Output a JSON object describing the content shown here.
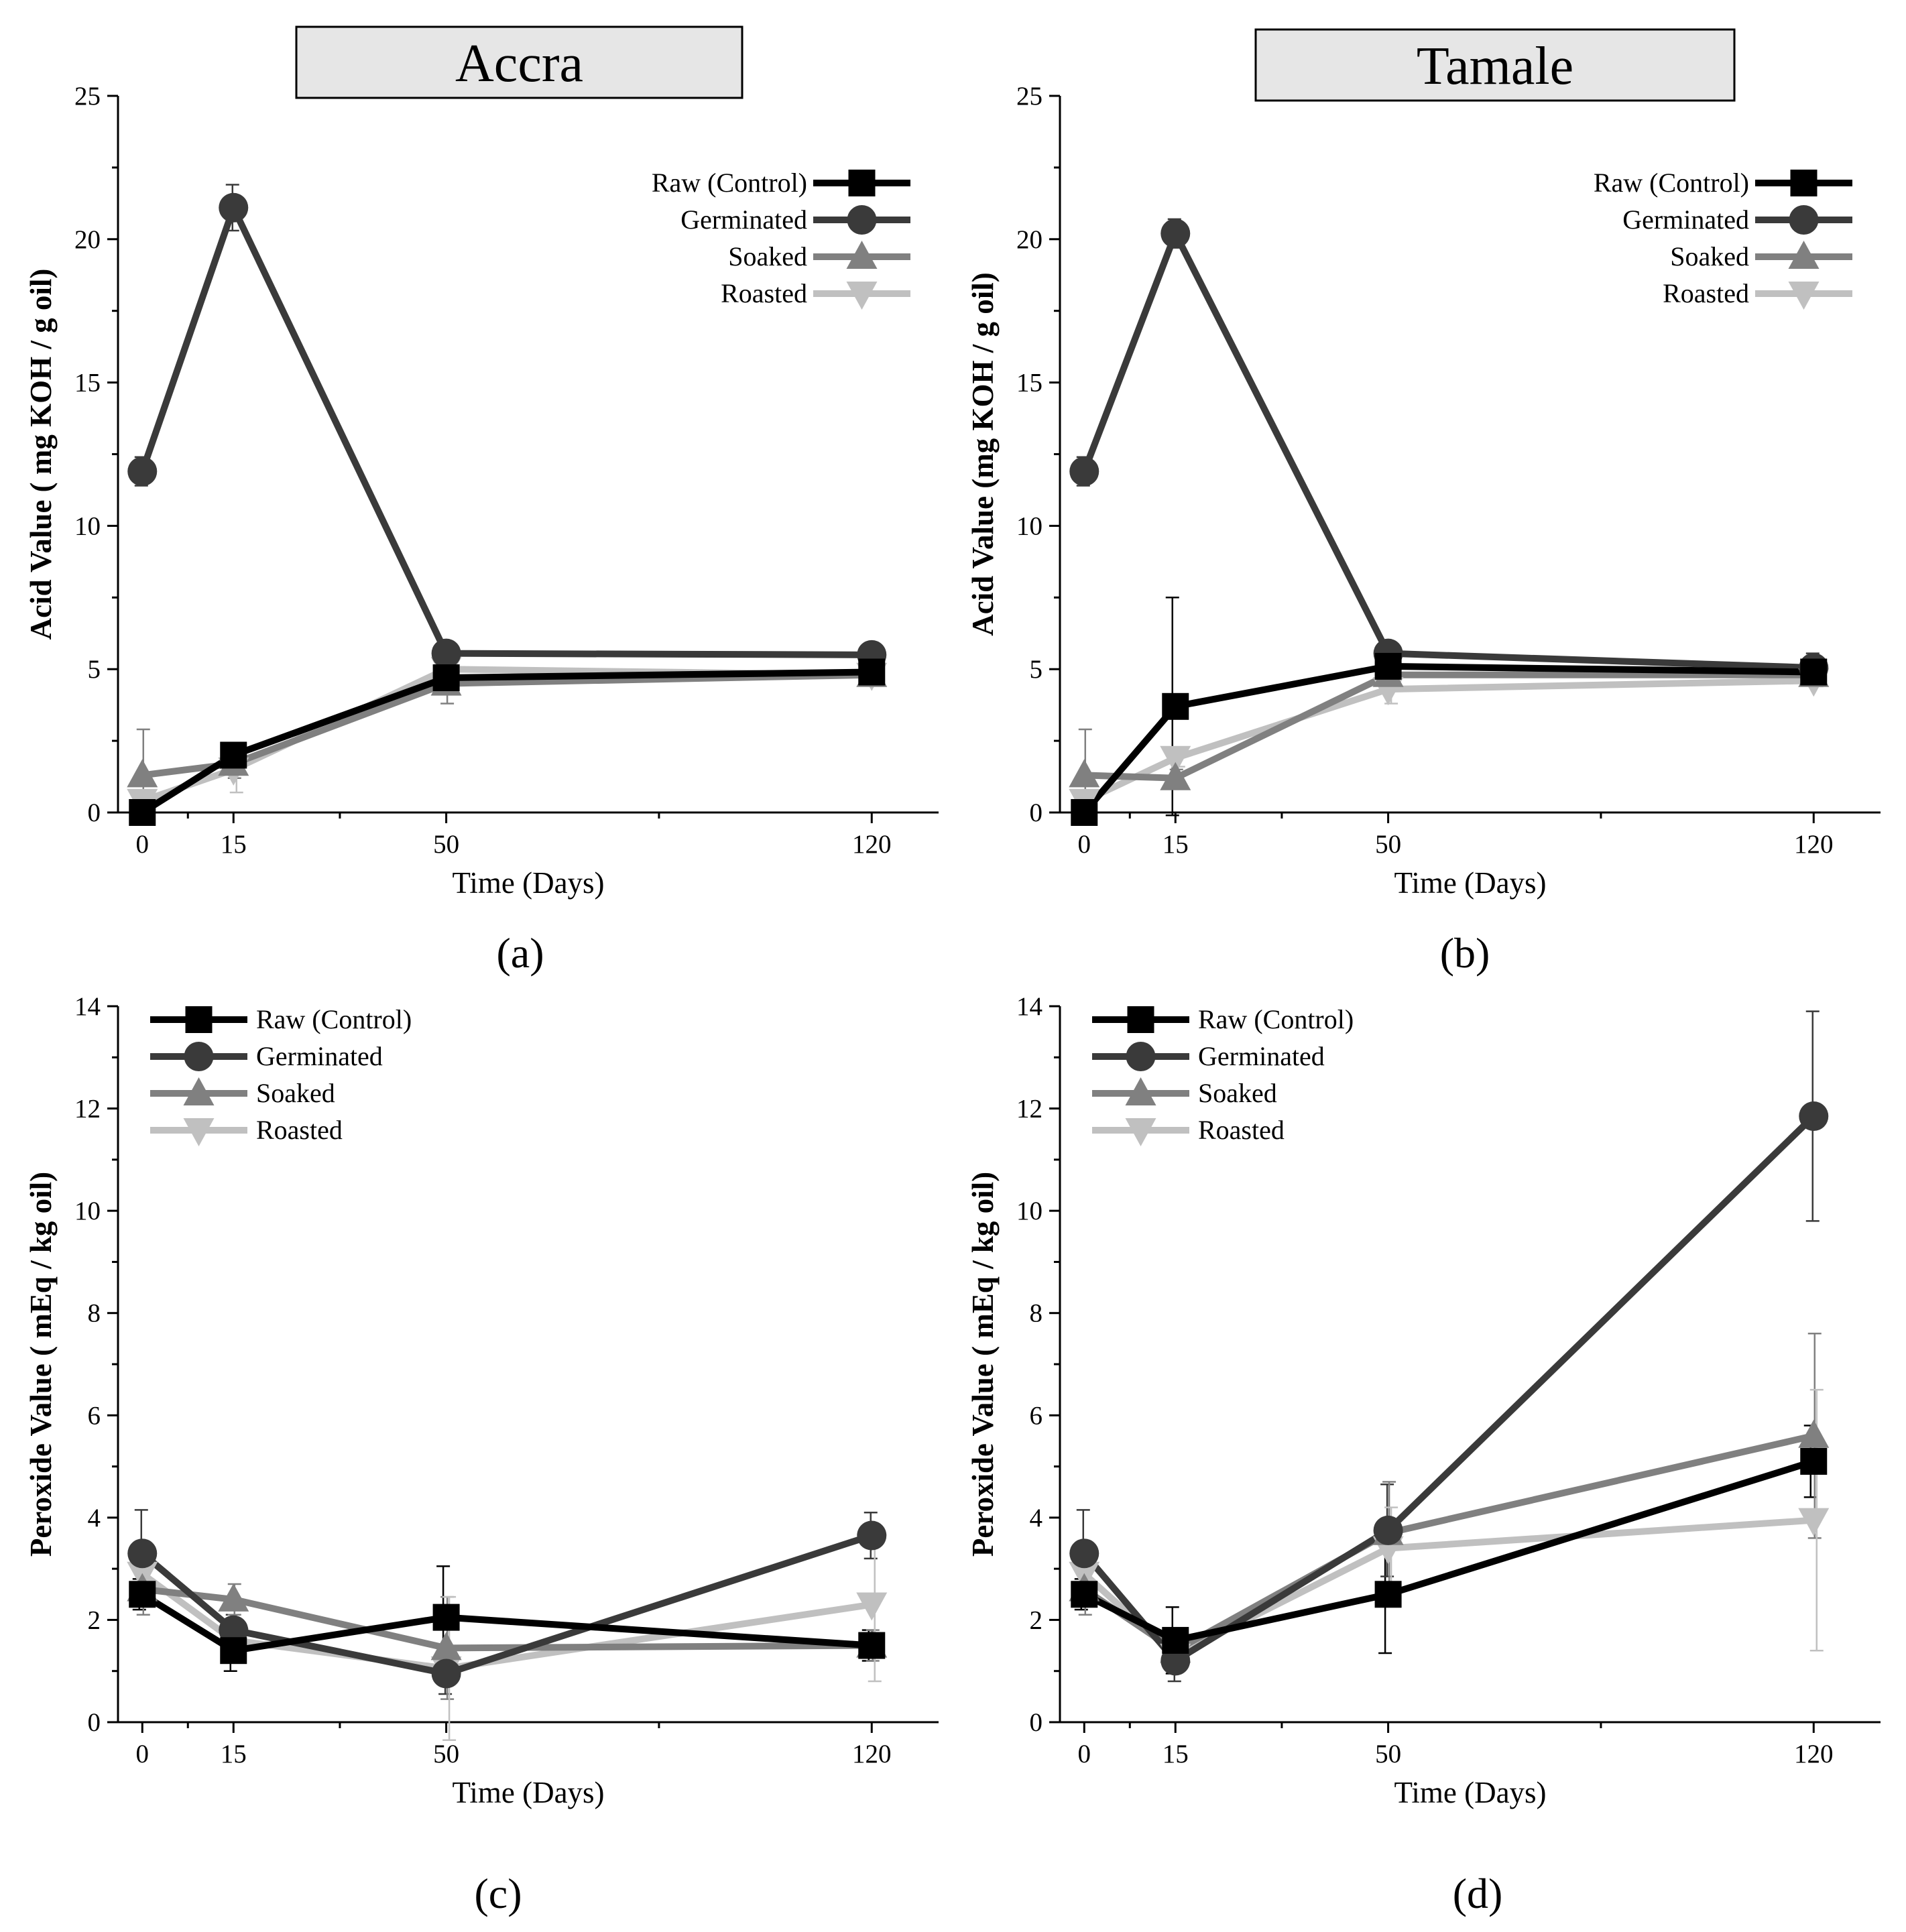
{
  "chart_data": [
    {
      "type": "line",
      "panel": "(a)",
      "title": "Accra",
      "xlabel": "Time (Days)",
      "ylabel": "Acid Value ( mg KOH / g oil)",
      "x": [
        0,
        15,
        50,
        120
      ],
      "xticks": [
        0,
        15,
        50,
        120
      ],
      "xlim": [
        -4,
        131
      ],
      "ylim": [
        0,
        25
      ],
      "yticks": [
        0,
        5,
        10,
        15,
        20,
        25
      ],
      "legend_position": "top-right",
      "series": [
        {
          "name": "Raw (Control)",
          "color": "#000000",
          "marker": "square",
          "values": [
            0.0,
            2.0,
            4.7,
            4.9
          ],
          "errors": [
            0.0,
            0.2,
            0.3,
            0.2
          ]
        },
        {
          "name": "Germinated",
          "color": "#3a3a3a",
          "marker": "circle",
          "values": [
            11.9,
            21.1,
            5.55,
            5.5
          ],
          "errors": [
            0.5,
            0.8,
            0.2,
            0.2
          ]
        },
        {
          "name": "Soaked",
          "color": "#808080",
          "marker": "triangle-up",
          "values": [
            1.3,
            1.7,
            4.5,
            4.8
          ],
          "errors": [
            1.6,
            0.5,
            0.7,
            0.2
          ]
        },
        {
          "name": "Roasted",
          "color": "#c0c0c0",
          "marker": "triangle-down",
          "values": [
            0.4,
            1.5,
            5.0,
            4.8
          ],
          "errors": [
            0.2,
            0.8,
            0.3,
            0.2
          ]
        }
      ]
    },
    {
      "type": "line",
      "panel": "(b)",
      "title": "Tamale",
      "xlabel": "Time (Days)",
      "ylabel": "Acid Value (mg KOH / g oil)",
      "x": [
        0,
        15,
        50,
        120
      ],
      "xticks": [
        0,
        15,
        50,
        120
      ],
      "xlim": [
        -4,
        131
      ],
      "ylim": [
        0,
        25
      ],
      "yticks": [
        0,
        5,
        10,
        15,
        20,
        25
      ],
      "legend_position": "top-right",
      "series": [
        {
          "name": "Raw (Control)",
          "color": "#000000",
          "marker": "square",
          "values": [
            0.0,
            3.7,
            5.1,
            4.9
          ],
          "errors": [
            0.0,
            3.8,
            0.3,
            0.2
          ]
        },
        {
          "name": "Germinated",
          "color": "#3a3a3a",
          "marker": "circle",
          "values": [
            11.9,
            20.2,
            5.55,
            5.05
          ],
          "errors": [
            0.5,
            0.5,
            0.2,
            0.5
          ]
        },
        {
          "name": "Soaked",
          "color": "#808080",
          "marker": "triangle-up",
          "values": [
            1.3,
            1.2,
            4.8,
            4.8
          ],
          "errors": [
            1.6,
            0.3,
            0.3,
            0.2
          ]
        },
        {
          "name": "Roasted",
          "color": "#c0c0c0",
          "marker": "triangle-down",
          "values": [
            0.4,
            1.9,
            4.3,
            4.6
          ],
          "errors": [
            0.2,
            0.3,
            0.5,
            0.2
          ]
        }
      ]
    },
    {
      "type": "line",
      "panel": "(c)",
      "title": "",
      "xlabel": "Time (Days)",
      "ylabel": "Peroxide Value ( mEq / kg oil)",
      "x": [
        0,
        15,
        50,
        120
      ],
      "xticks": [
        0,
        15,
        50,
        120
      ],
      "xlim": [
        -4,
        131
      ],
      "ylim": [
        0,
        14
      ],
      "yticks": [
        0,
        2,
        4,
        6,
        8,
        10,
        12,
        14
      ],
      "legend_position": "top-left",
      "series": [
        {
          "name": "Raw (Control)",
          "color": "#000000",
          "marker": "square",
          "values": [
            2.5,
            1.4,
            2.05,
            1.5
          ],
          "errors": [
            0.3,
            0.4,
            1.0,
            0.3
          ]
        },
        {
          "name": "Germinated",
          "color": "#3a3a3a",
          "marker": "circle",
          "values": [
            3.3,
            1.8,
            0.95,
            3.65
          ],
          "errors": [
            0.85,
            0.3,
            0.4,
            0.45
          ]
        },
        {
          "name": "Soaked",
          "color": "#808080",
          "marker": "triangle-up",
          "values": [
            2.6,
            2.4,
            1.45,
            1.5
          ],
          "errors": [
            0.5,
            0.3,
            1.0,
            0.3
          ]
        },
        {
          "name": "Roasted",
          "color": "#c0c0c0",
          "marker": "triangle-down",
          "values": [
            2.9,
            1.6,
            1.05,
            2.3
          ],
          "errors": [
            0.5,
            0.3,
            1.4,
            1.5
          ]
        }
      ]
    },
    {
      "type": "line",
      "panel": "(d)",
      "title": "",
      "xlabel": "Time (Days)",
      "ylabel": "Peroxide Value ( mEq / kg oil)",
      "x": [
        0,
        15,
        50,
        120
      ],
      "xticks": [
        0,
        15,
        50,
        120
      ],
      "xlim": [
        -4,
        131
      ],
      "ylim": [
        0,
        14
      ],
      "yticks": [
        0,
        2,
        4,
        6,
        8,
        10,
        12,
        14
      ],
      "legend_position": "top-left",
      "series": [
        {
          "name": "Raw (Control)",
          "color": "#000000",
          "marker": "square",
          "values": [
            2.5,
            1.6,
            2.5,
            5.1
          ],
          "errors": [
            0.3,
            0.65,
            1.15,
            0.7
          ]
        },
        {
          "name": "Germinated",
          "color": "#3a3a3a",
          "marker": "circle",
          "values": [
            3.3,
            1.2,
            3.75,
            11.85
          ],
          "errors": [
            0.85,
            0.4,
            0.9,
            2.05
          ]
        },
        {
          "name": "Soaked",
          "color": "#808080",
          "marker": "triangle-up",
          "values": [
            2.6,
            1.4,
            3.7,
            5.6
          ],
          "errors": [
            0.5,
            0.4,
            1.0,
            2.0
          ]
        },
        {
          "name": "Roasted",
          "color": "#c0c0c0",
          "marker": "triangle-down",
          "values": [
            2.9,
            1.3,
            3.4,
            3.95
          ],
          "errors": [
            0.5,
            0.3,
            0.8,
            2.55
          ]
        }
      ]
    }
  ]
}
